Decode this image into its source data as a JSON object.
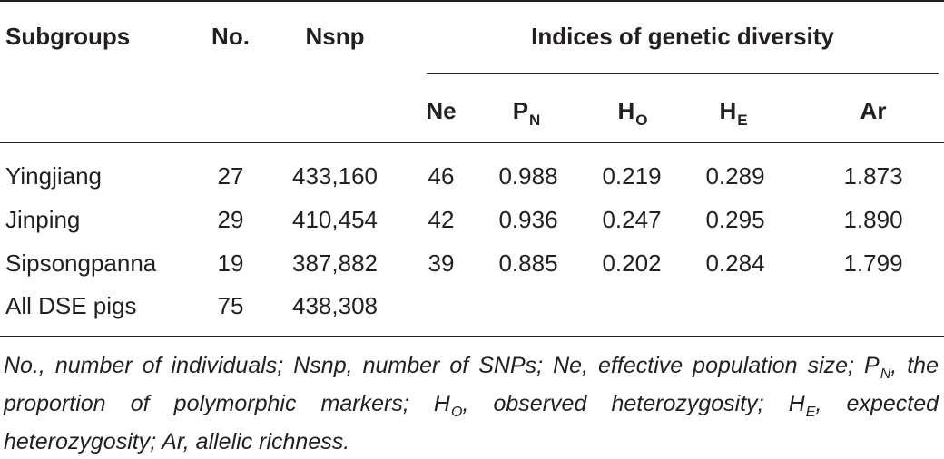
{
  "table": {
    "headers": {
      "subgroups": "Subgroups",
      "no": "No.",
      "nsnp": "Nsnp",
      "indices": "Indices of genetic diversity",
      "ne": "Ne",
      "pn": {
        "main": "P",
        "sub": "N"
      },
      "ho": {
        "main": "H",
        "sub": "O"
      },
      "he": {
        "main": "H",
        "sub": "E"
      },
      "ar": "Ar"
    },
    "rows": [
      {
        "subgroup": "Yingjiang",
        "no": "27",
        "nsnp": "433,160",
        "ne": "46",
        "pn": "0.988",
        "ho": "0.219",
        "he": "0.289",
        "ar": "1.873"
      },
      {
        "subgroup": "Jinping",
        "no": "29",
        "nsnp": "410,454",
        "ne": "42",
        "pn": "0.936",
        "ho": "0.247",
        "he": "0.295",
        "ar": "1.890"
      },
      {
        "subgroup": "Sipsongpanna",
        "no": "19",
        "nsnp": "387,882",
        "ne": "39",
        "pn": "0.885",
        "ho": "0.202",
        "he": "0.284",
        "ar": "1.799"
      },
      {
        "subgroup": "All DSE pigs",
        "no": "75",
        "nsnp": "438,308",
        "ne": "",
        "pn": "",
        "ho": "",
        "he": "",
        "ar": ""
      }
    ]
  },
  "footnote": {
    "part1": "No., number of individuals; Nsnp, number of SNPs; Ne, effective population size; ",
    "pn_main": "P",
    "pn_sub": "N",
    "part2": ", the proportion of polymorphic markers; ",
    "ho_main": "H",
    "ho_sub": "O",
    "part3": ", observed heterozygosity; ",
    "he_main": "H",
    "he_sub": "E",
    "part4": ", expected heterozygosity; Ar, allelic richness."
  }
}
